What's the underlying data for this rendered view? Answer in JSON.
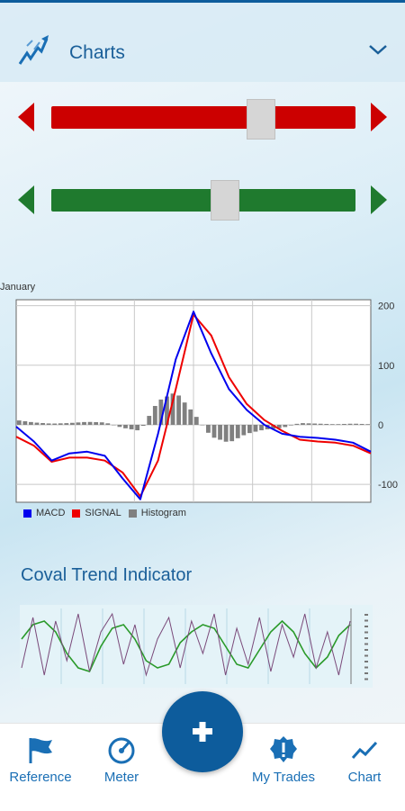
{
  "header": {
    "title": "Charts",
    "logo_icon": "chart-arrow-logo-icon",
    "expand_icon": "chevron-down-icon"
  },
  "sliders": [
    {
      "name": "red-slider",
      "color": "#cc0000",
      "value": 0.69
    },
    {
      "name": "green-slider",
      "color": "#1f7a2e",
      "value": 0.57
    }
  ],
  "macd": {
    "month_label": "January",
    "legend": [
      {
        "label": "MACD",
        "color": "#0000ee"
      },
      {
        "label": "SIGNAL",
        "color": "#ee0000"
      },
      {
        "label": "Histogram",
        "color": "#808080"
      }
    ]
  },
  "chart_data": [
    {
      "type": "line",
      "title": "",
      "ylim": [
        -130,
        210
      ],
      "yticks": [
        "200",
        "100",
        "0",
        "-100"
      ],
      "grid": true,
      "legend_position": "bottom-left",
      "x": [
        0,
        5,
        10,
        15,
        20,
        25,
        30,
        35,
        40,
        45,
        50,
        55,
        60,
        65,
        70,
        75,
        80,
        85,
        90,
        95,
        100
      ],
      "series": [
        {
          "name": "MACD",
          "color": "#0000ee",
          "values": [
            -3,
            -28,
            -60,
            -48,
            -45,
            -52,
            -90,
            -125,
            -15,
            110,
            190,
            120,
            60,
            25,
            0,
            -15,
            -20,
            -22,
            -25,
            -30,
            -45
          ]
        },
        {
          "name": "SIGNAL",
          "color": "#ee0000",
          "values": [
            -20,
            -35,
            -62,
            -55,
            -55,
            -60,
            -80,
            -120,
            -60,
            60,
            185,
            150,
            80,
            35,
            8,
            -10,
            -25,
            -28,
            -30,
            -35,
            -48
          ]
        },
        {
          "name": "Histogram",
          "color": "#808080",
          "values": [
            8,
            4,
            2,
            3,
            5,
            4,
            -5,
            -10,
            40,
            55,
            20,
            -20,
            -30,
            -15,
            -8,
            -5,
            3,
            2,
            1,
            2,
            1
          ]
        }
      ]
    },
    {
      "type": "line",
      "title": "Coval Trend Indicator",
      "series": [
        {
          "name": "",
          "color": "#2a9a2a",
          "values": [
            60,
            80,
            85,
            70,
            40,
            20,
            15,
            50,
            75,
            80,
            60,
            30,
            20,
            25,
            55,
            70,
            80,
            75,
            50,
            25,
            20,
            45,
            70,
            85,
            70,
            40,
            20,
            35,
            65,
            80
          ]
        },
        {
          "name": "",
          "color": "#7a4a7a",
          "values": [
            20,
            90,
            10,
            85,
            30,
            95,
            15,
            70,
            95,
            25,
            80,
            10,
            60,
            90,
            20,
            85,
            40,
            95,
            10,
            75,
            25,
            90,
            15,
            80,
            35,
            95,
            20,
            70,
            10,
            85
          ]
        }
      ]
    }
  ],
  "coval": {
    "title": "Coval Trend Indicator"
  },
  "fab": {
    "icon": "plus-icon"
  },
  "nav": [
    {
      "label": "Reference",
      "icon": "flag-icon"
    },
    {
      "label": "Meter",
      "icon": "speedometer-icon"
    },
    {
      "label": "My Trades",
      "icon": "alert-badge-icon"
    },
    {
      "label": "Chart",
      "icon": "trend-line-icon"
    }
  ]
}
